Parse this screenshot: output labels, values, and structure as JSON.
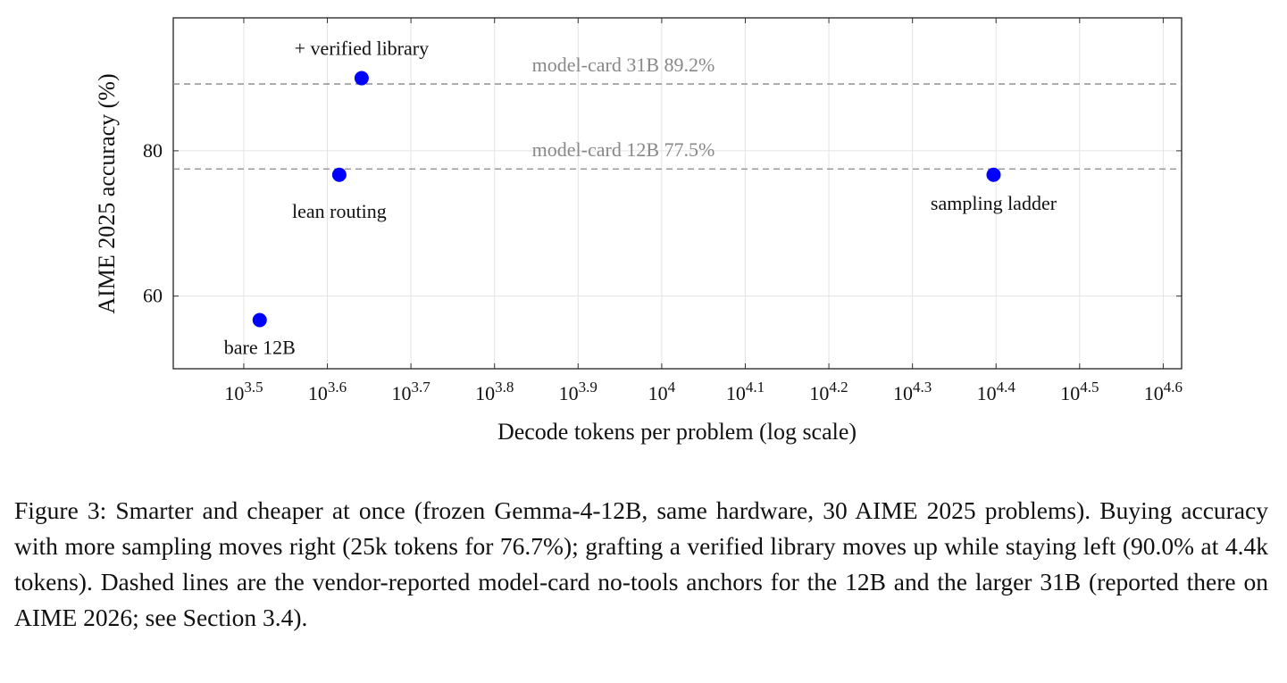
{
  "chart_data": {
    "type": "scatter",
    "x_label": "Decode tokens per problem (log scale)",
    "y_label": "AIME 2025 accuracy (%)",
    "xscale": "log",
    "grid": true,
    "color": "#0000ff",
    "x": [
      3304,
      4114,
      4375,
      24950
    ],
    "values": [
      56.7,
      76.7,
      90.0,
      76.7
    ],
    "point_labels": [
      "bare 12B",
      "lean routing",
      "+ verified library",
      "sampling ladder"
    ],
    "hlines": [
      {
        "value": 89.2,
        "label": "model-card 31B 89.2%"
      },
      {
        "value": 77.5,
        "label": "model-card 12B 77.5%"
      }
    ],
    "xlim": [
      2604,
      41880
    ],
    "ylim": [
      50,
      98.3
    ],
    "xticks": [
      {
        "value": 3162.28,
        "label": "103.5"
      },
      {
        "value": 3981.07,
        "label": "103.6"
      },
      {
        "value": 5011.87,
        "label": "103.7"
      },
      {
        "value": 6309.57,
        "label": "103.8"
      },
      {
        "value": 7943.28,
        "label": "103.9"
      },
      {
        "value": 10000,
        "label": "104"
      },
      {
        "value": 12589.25,
        "label": "104.1"
      },
      {
        "value": 15848.93,
        "label": "104.2"
      },
      {
        "value": 19952.62,
        "label": "104.3"
      },
      {
        "value": 25118.86,
        "label": "104.4"
      },
      {
        "value": 31622.78,
        "label": "104.5"
      },
      {
        "value": 39810.72,
        "label": "104.6"
      }
    ],
    "yticks": [
      60,
      80
    ]
  },
  "caption": "Figure 3: Smarter and cheaper at once (frozen Gemma-4-12B, same hardware, 30 AIME 2025 problems). Buying accuracy with more sampling moves right (25k tokens for 76.7%); grafting a verified library moves up while staying left (90.0% at 4.4k tokens). Dashed lines are the vendor-reported model-card no-tools anchors for the 12B and the larger 31B (reported there on AIME 2026; see Section 3.4)."
}
